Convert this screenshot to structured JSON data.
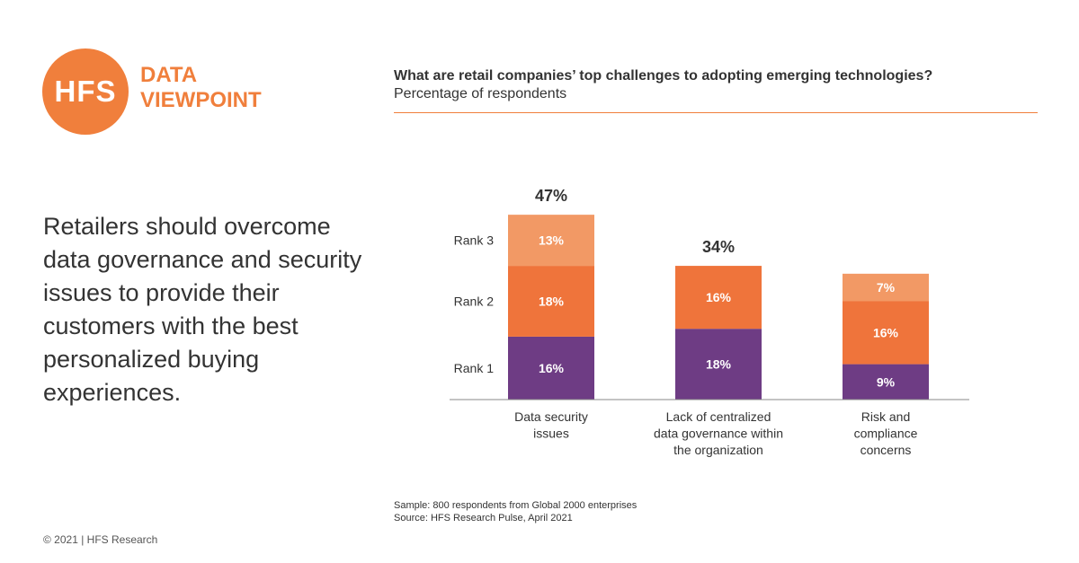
{
  "logo": {
    "mark": "HFS",
    "line1": "DATA",
    "line2": "VIEWPOINT"
  },
  "headline": "Retailers should overcome data governance and security issues to provide their customers with the best personalized buying experiences.",
  "copyright": "© 2021 | HFS Research",
  "notes": {
    "sample": "Sample: 800 respondents from Global 2000 enterprises",
    "source": "Source: HFS Research Pulse, April 2021"
  },
  "colors": {
    "accent": "#f07f3c",
    "rank1": "#6e3c84",
    "rank2": "#ef743b",
    "rank3": "#f29965"
  },
  "chart_data": {
    "type": "bar",
    "stacked": true,
    "title": "What are retail companies’ top challenges to adopting emerging technologies?",
    "subtitle": "Percentage of respondents",
    "categories": [
      [
        "Data security",
        "issues"
      ],
      [
        "Lack of centralized",
        "data governance within",
        "the organization"
      ],
      [
        "Risk and",
        "compliance",
        "concerns"
      ]
    ],
    "series": [
      {
        "name": "Rank 1",
        "values": [
          16,
          18,
          9
        ]
      },
      {
        "name": "Rank 2",
        "values": [
          18,
          16,
          16
        ]
      },
      {
        "name": "Rank 3",
        "values": [
          13,
          0,
          7
        ]
      }
    ],
    "totals": [
      "47%",
      "34%",
      null
    ],
    "value_suffix": "%",
    "legend": "left"
  }
}
